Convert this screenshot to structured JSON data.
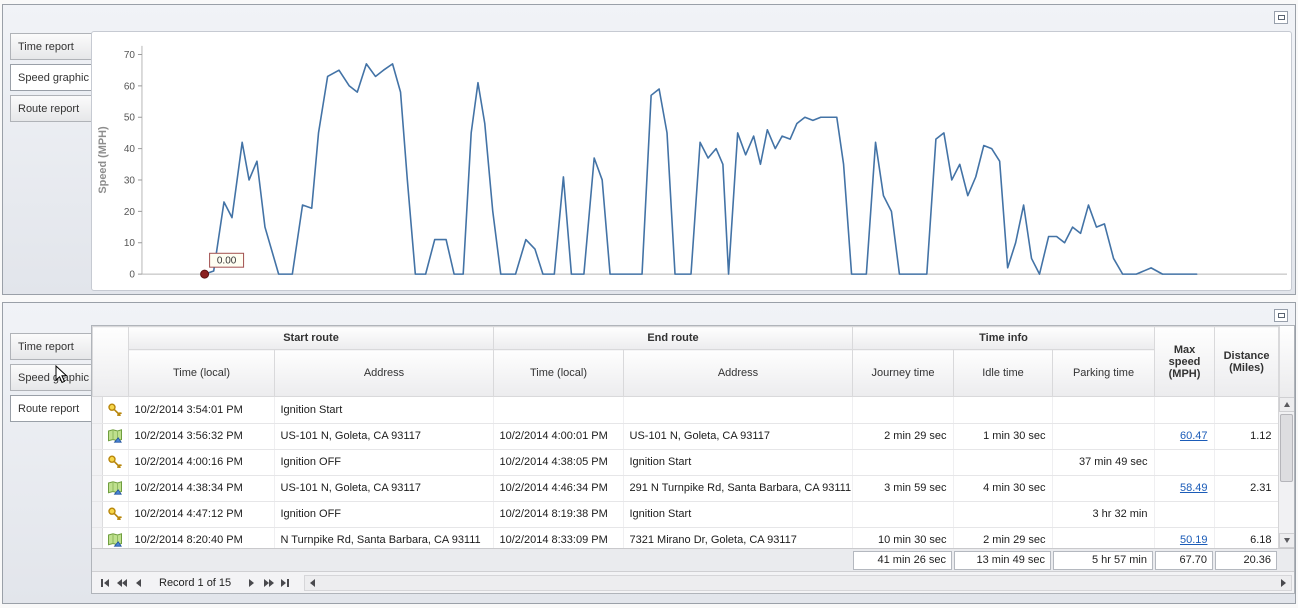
{
  "accent_colors": {
    "chart_line": "#4373a6",
    "link": "#1b5cb8",
    "marker": "#8b2020"
  },
  "top_panel": {
    "tabs": [
      {
        "label": "Time report",
        "selected": false
      },
      {
        "label": "Speed graphic",
        "selected": true
      },
      {
        "label": "Route report",
        "selected": false
      }
    ]
  },
  "chart_data": {
    "type": "line",
    "title": "",
    "xlabel": "",
    "ylabel": "Speed (MPH)",
    "yticks": [
      0,
      10,
      20,
      30,
      40,
      50,
      60,
      70
    ],
    "ylim": [
      0,
      74
    ],
    "grid": false,
    "legend": "none",
    "annotation": {
      "label": "0.00",
      "at_first_point": true
    },
    "series": [
      {
        "name": "Speed",
        "color": "#4373a6",
        "points": [
          [
            5.5,
            0
          ],
          [
            6.3,
            1
          ],
          [
            7.2,
            23
          ],
          [
            7.9,
            18
          ],
          [
            8.8,
            42
          ],
          [
            9.4,
            30
          ],
          [
            10.1,
            36
          ],
          [
            10.8,
            15
          ],
          [
            12.0,
            0
          ],
          [
            13.2,
            0
          ],
          [
            14.1,
            22
          ],
          [
            14.9,
            21
          ],
          [
            15.5,
            45
          ],
          [
            16.3,
            63
          ],
          [
            17.3,
            65
          ],
          [
            18.2,
            60
          ],
          [
            18.9,
            58
          ],
          [
            19.7,
            67
          ],
          [
            20.5,
            63
          ],
          [
            21.2,
            65
          ],
          [
            22.0,
            67
          ],
          [
            22.7,
            58
          ],
          [
            23.3,
            30
          ],
          [
            24.0,
            0
          ],
          [
            24.9,
            0
          ],
          [
            25.7,
            11
          ],
          [
            26.7,
            11
          ],
          [
            27.4,
            0
          ],
          [
            28.2,
            0
          ],
          [
            28.9,
            45
          ],
          [
            29.5,
            61
          ],
          [
            30.1,
            48
          ],
          [
            30.8,
            20
          ],
          [
            31.5,
            0
          ],
          [
            32.8,
            0
          ],
          [
            33.7,
            11
          ],
          [
            34.5,
            8
          ],
          [
            35.2,
            0
          ],
          [
            36.2,
            0
          ],
          [
            37.0,
            31
          ],
          [
            37.7,
            0
          ],
          [
            38.8,
            0
          ],
          [
            39.7,
            37
          ],
          [
            40.4,
            30
          ],
          [
            41.1,
            0
          ],
          [
            42.6,
            0
          ],
          [
            43.9,
            0
          ],
          [
            44.7,
            57
          ],
          [
            45.4,
            59
          ],
          [
            46.1,
            45
          ],
          [
            46.8,
            0
          ],
          [
            48.2,
            0
          ],
          [
            49.0,
            42
          ],
          [
            49.7,
            37
          ],
          [
            50.4,
            40
          ],
          [
            51.0,
            35
          ],
          [
            51.5,
            0
          ],
          [
            52.3,
            45
          ],
          [
            53.0,
            38
          ],
          [
            53.7,
            44
          ],
          [
            54.3,
            35
          ],
          [
            54.9,
            46
          ],
          [
            55.6,
            40
          ],
          [
            56.2,
            44
          ],
          [
            56.9,
            43
          ],
          [
            57.5,
            48
          ],
          [
            58.2,
            50
          ],
          [
            58.9,
            49
          ],
          [
            59.6,
            50
          ],
          [
            60.3,
            50
          ],
          [
            61.0,
            50
          ],
          [
            61.6,
            35
          ],
          [
            62.3,
            0
          ],
          [
            63.6,
            0
          ],
          [
            64.4,
            42
          ],
          [
            65.1,
            25
          ],
          [
            65.8,
            20
          ],
          [
            66.5,
            0
          ],
          [
            67.8,
            0
          ],
          [
            68.9,
            0
          ],
          [
            69.7,
            43
          ],
          [
            70.4,
            45
          ],
          [
            71.1,
            30
          ],
          [
            71.8,
            35
          ],
          [
            72.5,
            25
          ],
          [
            73.2,
            31
          ],
          [
            73.9,
            41
          ],
          [
            74.6,
            40
          ],
          [
            75.3,
            36
          ],
          [
            76.0,
            2
          ],
          [
            76.7,
            10
          ],
          [
            77.4,
            22
          ],
          [
            78.1,
            5
          ],
          [
            78.8,
            0
          ],
          [
            79.6,
            12
          ],
          [
            80.3,
            12
          ],
          [
            81.0,
            10
          ],
          [
            81.7,
            15
          ],
          [
            82.4,
            13
          ],
          [
            83.1,
            22
          ],
          [
            83.8,
            15
          ],
          [
            84.5,
            16
          ],
          [
            85.3,
            5
          ],
          [
            86.1,
            0
          ],
          [
            87.3,
            0
          ],
          [
            88.6,
            2
          ],
          [
            89.6,
            0
          ],
          [
            90.6,
            0
          ],
          [
            91.6,
            0
          ],
          [
            92.6,
            0
          ]
        ]
      }
    ]
  },
  "bottom_panel": {
    "tabs": [
      {
        "label": "Time report",
        "selected": false
      },
      {
        "label": "Speed graphic",
        "selected": false
      },
      {
        "label": "Route report",
        "selected": true
      }
    ],
    "table": {
      "group_headers": [
        "Start route",
        "End route",
        "Time info"
      ],
      "columns": [
        "Time (local)",
        "Address",
        "Time (local)",
        "Address",
        "Journey time",
        "Idle time",
        "Parking time",
        "Max speed (MPH)",
        "Distance (Miles)"
      ],
      "rows": [
        {
          "icon": "key-icon",
          "start_time": "10/2/2014 3:54:01 PM",
          "start_address": "Ignition Start",
          "end_time": "",
          "end_address": "",
          "journey_time": "",
          "idle_time": "",
          "parking_time": "",
          "max_speed": "",
          "max_speed_link": false,
          "distance": ""
        },
        {
          "icon": "route-icon",
          "start_time": "10/2/2014 3:56:32 PM",
          "start_address": "US-101 N, Goleta, CA 93117",
          "end_time": "10/2/2014 4:00:01 PM",
          "end_address": "US-101 N, Goleta, CA 93117",
          "journey_time": "2 min 29 sec",
          "idle_time": "1 min 30 sec",
          "parking_time": "",
          "max_speed": "60.47",
          "max_speed_link": true,
          "distance": "1.12"
        },
        {
          "icon": "key-icon",
          "start_time": "10/2/2014 4:00:16 PM",
          "start_address": "Ignition OFF",
          "end_time": "10/2/2014 4:38:05 PM",
          "end_address": "Ignition Start",
          "journey_time": "",
          "idle_time": "",
          "parking_time": "37 min 49 sec",
          "max_speed": "",
          "max_speed_link": false,
          "distance": ""
        },
        {
          "icon": "route-icon",
          "start_time": "10/2/2014 4:38:34 PM",
          "start_address": "US-101 N, Goleta, CA 93117",
          "end_time": "10/2/2014 4:46:34 PM",
          "end_address": "291 N Turnpike Rd, Santa Barbara, CA 93111",
          "journey_time": "3 min 59 sec",
          "idle_time": "4 min 30 sec",
          "parking_time": "",
          "max_speed": "58.49",
          "max_speed_link": true,
          "distance": "2.31"
        },
        {
          "icon": "key-icon",
          "start_time": "10/2/2014 4:47:12 PM",
          "start_address": "Ignition OFF",
          "end_time": "10/2/2014 8:19:38 PM",
          "end_address": "Ignition Start",
          "journey_time": "",
          "idle_time": "",
          "parking_time": "3 hr 32 min",
          "max_speed": "",
          "max_speed_link": false,
          "distance": ""
        },
        {
          "icon": "route-icon",
          "start_time": "10/2/2014 8:20:40 PM",
          "start_address": "N Turnpike Rd, Santa Barbara, CA 93111",
          "end_time": "10/2/2014 8:33:09 PM",
          "end_address": "7321 Mirano Dr, Goleta, CA 93117",
          "journey_time": "10 min 30 sec",
          "idle_time": "2 min 29 sec",
          "parking_time": "",
          "max_speed": "50.19",
          "max_speed_link": true,
          "distance": "6.18"
        }
      ],
      "summary": {
        "journey_time": "41 min 26 sec",
        "idle_time": "13 min 49 sec",
        "parking_time": "5 hr 57 min",
        "max_speed": "67.70",
        "distance": "20.36"
      }
    },
    "navigator": {
      "record_label": "Record 1 of 15"
    }
  }
}
